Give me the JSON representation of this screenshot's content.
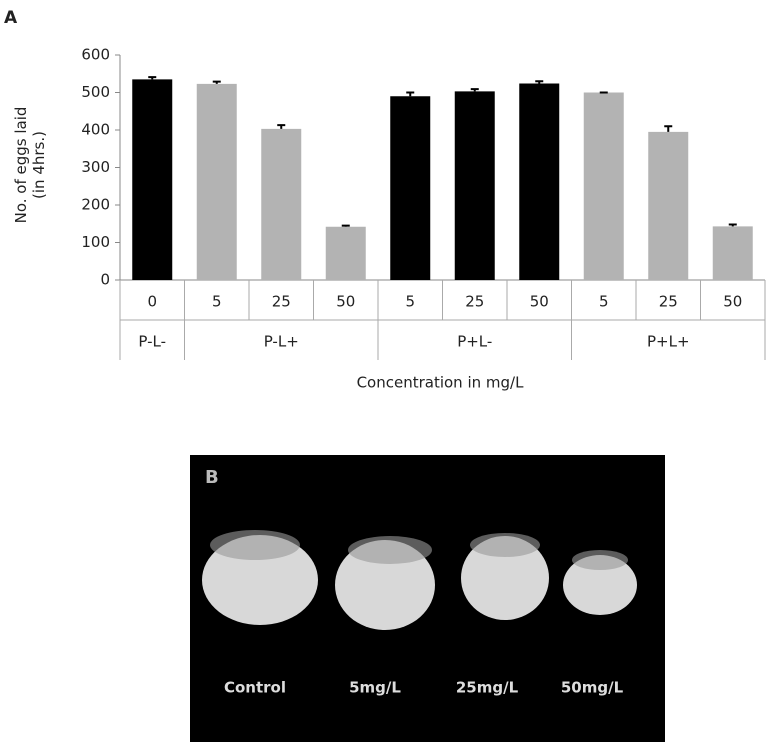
{
  "panel_a": "A",
  "chart_data": {
    "type": "bar",
    "y_label": [
      "No. of eggs laid",
      "(in 4hrs.)"
    ],
    "x_label": "Concentration in mg/L",
    "ylim": [
      0,
      600
    ],
    "yticks": [
      0,
      100,
      200,
      300,
      400,
      500,
      600
    ],
    "groups": [
      {
        "name": "P-L-",
        "color": "#000000",
        "categories": [
          "0"
        ],
        "values": [
          535
        ],
        "errors": [
          6
        ]
      },
      {
        "name": "P-L+",
        "color": "#b3b3b3",
        "categories": [
          "5",
          "25",
          "50"
        ],
        "values": [
          523,
          403,
          142
        ],
        "errors": [
          6,
          10,
          3
        ]
      },
      {
        "name": "P+L-",
        "color": "#000000",
        "categories": [
          "5",
          "25",
          "50"
        ],
        "values": [
          490,
          503,
          524
        ],
        "errors": [
          10,
          6,
          6
        ]
      },
      {
        "name": "P+L+",
        "color": "#b3b3b3",
        "categories": [
          "5",
          "25",
          "50"
        ],
        "values": [
          500,
          395,
          143
        ],
        "errors": [
          0,
          15,
          5
        ]
      }
    ]
  },
  "panel_b": {
    "label": "B",
    "captions": [
      "Control",
      "5mg/L",
      "25mg/L",
      "50mg/L"
    ]
  }
}
